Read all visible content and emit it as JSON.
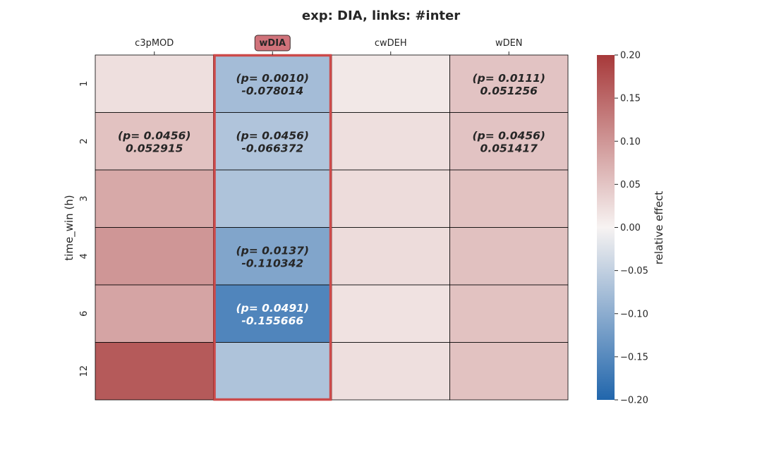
{
  "chart_data": {
    "type": "heatmap",
    "title": "exp: DIA, links: #inter",
    "ylabel": "time_win (h)",
    "colorbar_label": "relative effect",
    "columns": [
      "c3pMOD",
      "wDIA",
      "cwDEH",
      "wDEN"
    ],
    "highlighted_column": "wDIA",
    "rows": [
      "1",
      "2",
      "3",
      "4",
      "6",
      "12"
    ],
    "values": [
      [
        0.022,
        -0.078014,
        0.012,
        0.051256
      ],
      [
        0.052915,
        -0.066372,
        0.022,
        0.051417
      ],
      [
        0.08,
        -0.068,
        0.025,
        0.053
      ],
      [
        0.1,
        -0.110342,
        0.025,
        0.054
      ],
      [
        0.085,
        -0.155666,
        0.018,
        0.053
      ],
      [
        0.165,
        -0.068,
        0.022,
        0.053
      ]
    ],
    "annotations": [
      [
        "",
        "(p= 0.0010)\n-0.078014",
        "",
        "(p= 0.0111)\n0.051256"
      ],
      [
        "(p= 0.0456)\n0.052915",
        "(p= 0.0456)\n-0.066372",
        "",
        "(p= 0.0456)\n0.051417"
      ],
      [
        "",
        "",
        "",
        ""
      ],
      [
        "",
        "(p= 0.0137)\n-0.110342",
        "",
        ""
      ],
      [
        "",
        "(p= 0.0491)\n-0.155666",
        "",
        ""
      ],
      [
        "",
        "",
        "",
        ""
      ]
    ],
    "colorbar": {
      "vmin": -0.2,
      "vmax": 0.2,
      "ticks": [
        "0.20",
        "0.15",
        "0.10",
        "0.05",
        "0.00",
        "−0.05",
        "−0.10",
        "−0.15",
        "−0.20"
      ]
    },
    "colormap": {
      "low": "#2166ac",
      "mid": "#f7f3f2",
      "high": "#a7393a"
    },
    "highlight_color": "#cc4a4a",
    "highlight_label_bg": "#d0727a"
  }
}
